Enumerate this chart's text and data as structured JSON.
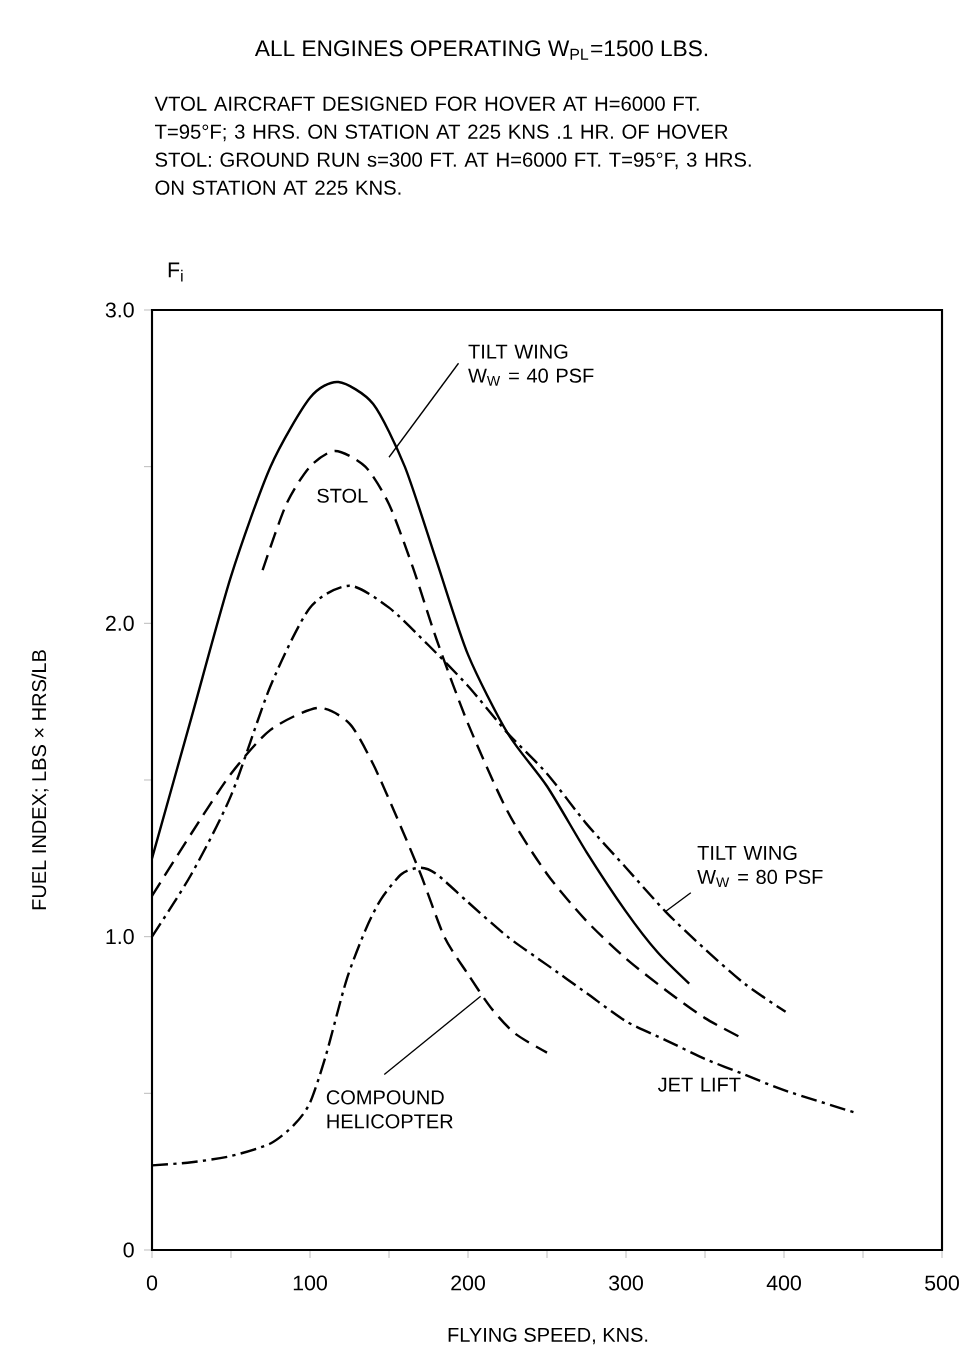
{
  "chart_data": {
    "type": "line",
    "title": "ALL ENGINES OPERATING W$_{PL}$=1500 LBS.",
    "subtitle": "VTOL AIRCRAFT DESIGNED FOR HOVER AT H=6000 FT. T=95°F; 3 HRS. ON STATION AT 225 KNS .1 HR. OF HOVER STOL: GROUND RUN s=300 FT. AT H=6000 FT. T=95°F, 3 HRS. ON STATION AT 225 KNS.",
    "xlabel": "FLYING SPEED, KNS.",
    "ylabel": "FUEL INDEX; LBS × HRS/LB",
    "annotations": [
      "F$_{i}$"
    ],
    "xlim": [
      0,
      500
    ],
    "ylim": [
      0,
      3
    ],
    "xticks": [
      0,
      {
        "value": 50,
        "label": null
      },
      100,
      {
        "value": 150,
        "label": null
      },
      200,
      {
        "value": 250,
        "label": null
      },
      300,
      {
        "value": 350,
        "label": null
      },
      400,
      {
        "value": 450,
        "label": null
      },
      500
    ],
    "yticks": [
      0,
      {
        "value": 0.5,
        "label": null
      },
      {
        "value": 1,
        "label": "1.0"
      },
      {
        "value": 1.5,
        "label": null
      },
      {
        "value": 2,
        "label": "2.0"
      },
      {
        "value": 2.5,
        "label": null
      },
      {
        "value": 3,
        "label": "3.0"
      }
    ],
    "series": [
      {
        "name": "TILT WING W$_{W}$ = 40 PSF",
        "color": "#000000",
        "line_style": "solid",
        "x": [
          0,
          25,
          50,
          75,
          100,
          118,
          140,
          160,
          180,
          200,
          225,
          250,
          275,
          300,
          320,
          340
        ],
        "values": [
          1.25,
          1.7,
          2.15,
          2.5,
          2.72,
          2.77,
          2.7,
          2.5,
          2.2,
          1.9,
          1.65,
          1.48,
          1.27,
          1.08,
          0.95,
          0.85
        ]
      },
      {
        "name": "STOL",
        "color": "#000000",
        "line_style": "dashed",
        "x": [
          70,
          85,
          100,
          116,
          135,
          150,
          165,
          180,
          200,
          225,
          250,
          275,
          300,
          325,
          350,
          372
        ],
        "values": [
          2.17,
          2.38,
          2.5,
          2.55,
          2.5,
          2.38,
          2.18,
          1.95,
          1.68,
          1.4,
          1.2,
          1.05,
          0.93,
          0.83,
          0.74,
          0.68
        ]
      },
      {
        "name": "TILT WING W$_{W}$ = 80 PSF",
        "color": "#000000",
        "line_style": "dashdot",
        "x": [
          0,
          25,
          50,
          75,
          100,
          125,
          150,
          175,
          200,
          225,
          250,
          275,
          300,
          325,
          350,
          375,
          401
        ],
        "values": [
          1.0,
          1.2,
          1.45,
          1.8,
          2.05,
          2.12,
          2.05,
          1.93,
          1.8,
          1.65,
          1.52,
          1.36,
          1.22,
          1.08,
          0.96,
          0.85,
          0.76
        ]
      },
      {
        "name": "COMPOUND HELICOPTER",
        "color": "#000000",
        "line_style": "dashed",
        "x": [
          0,
          25,
          50,
          75,
          105,
          125,
          140,
          155,
          170,
          185,
          200,
          215,
          230,
          250
        ],
        "values": [
          1.13,
          1.33,
          1.52,
          1.66,
          1.73,
          1.68,
          1.55,
          1.38,
          1.2,
          1.0,
          0.88,
          0.77,
          0.69,
          0.63
        ]
      },
      {
        "name": "JET LIFT",
        "color": "#000000",
        "line_style": "dashdot",
        "x": [
          0,
          25,
          50,
          75,
          90,
          100,
          110,
          123,
          135,
          145,
          158,
          170,
          180,
          200,
          225,
          250,
          275,
          300,
          325,
          350,
          375,
          400,
          444
        ],
        "values": [
          0.27,
          0.28,
          0.3,
          0.34,
          0.4,
          0.47,
          0.62,
          0.86,
          1.02,
          1.12,
          1.2,
          1.22,
          1.2,
          1.11,
          1.0,
          0.91,
          0.82,
          0.73,
          0.67,
          0.61,
          0.56,
          0.51,
          0.44
        ]
      }
    ]
  }
}
